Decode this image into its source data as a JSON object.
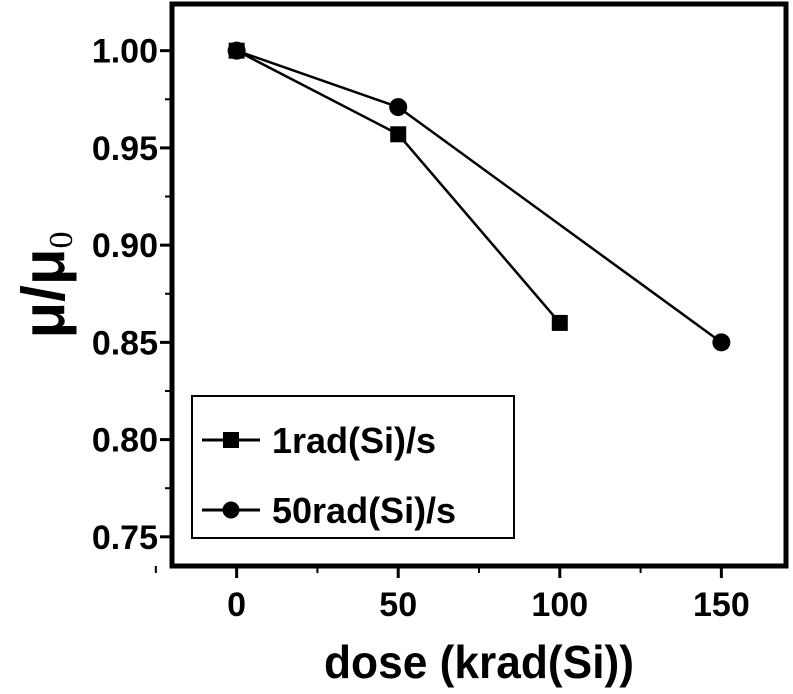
{
  "chart_data": {
    "type": "line",
    "xlabel": "dose (krad(Si))",
    "ylabel": {
      "main": "μ/μ",
      "sub": "0"
    },
    "xlim": [
      -20,
      170
    ],
    "ylim": [
      0.735,
      1.024
    ],
    "x_ticks": [
      0,
      50,
      100,
      150
    ],
    "x_tick_labels": [
      "0",
      "50",
      "100",
      "150"
    ],
    "y_ticks": [
      0.75,
      0.8,
      0.85,
      0.9,
      0.95,
      1.0
    ],
    "y_tick_labels": [
      "0.75",
      "0.80",
      "0.85",
      "0.90",
      "0.95",
      "1.00"
    ],
    "grid": false,
    "legend_position": "bottom-left",
    "series": [
      {
        "name": "1rad(Si)/s",
        "marker": "square",
        "x": [
          0,
          50,
          100
        ],
        "y": [
          1.0,
          0.957,
          0.86
        ]
      },
      {
        "name": "50rad(Si)/s",
        "marker": "circle",
        "x": [
          0,
          50,
          150
        ],
        "y": [
          1.0,
          0.971,
          0.85
        ]
      }
    ],
    "colors": {
      "line": "#000000",
      "background": "#ffffff"
    }
  }
}
